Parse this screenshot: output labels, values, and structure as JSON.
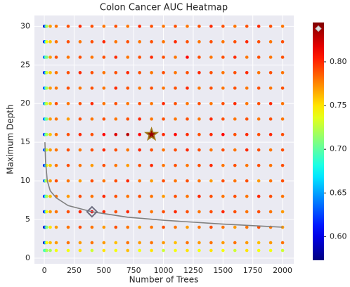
{
  "chart_data": {
    "type": "scatter",
    "title": "Colon Cancer AUC Heatmap",
    "x_label": "Number of Trees",
    "y_label": "Maximum Depth",
    "x": [
      1,
      10,
      20,
      50,
      100,
      200,
      300,
      400,
      500,
      600,
      700,
      800,
      900,
      1000,
      1100,
      1200,
      1300,
      1400,
      1500,
      1600,
      1700,
      1800,
      1900,
      2000
    ],
    "y": [
      1,
      2,
      4,
      6,
      8,
      10,
      12,
      14,
      16,
      18,
      20,
      22,
      24,
      26,
      28,
      30
    ],
    "values": [
      [
        0.7,
        0.69,
        0.72,
        0.72,
        0.74,
        0.74,
        0.75,
        0.73,
        0.75,
        0.74,
        0.76,
        0.74,
        0.75,
        0.73,
        0.74,
        0.75,
        0.74,
        0.75,
        0.74,
        0.73,
        0.75,
        0.74,
        0.74,
        0.73
      ],
      [
        0.59,
        0.66,
        0.74,
        0.76,
        0.77,
        0.78,
        0.77,
        0.78,
        0.77,
        0.76,
        0.78,
        0.77,
        0.78,
        0.77,
        0.76,
        0.78,
        0.77,
        0.78,
        0.77,
        0.78,
        0.77,
        0.76,
        0.77,
        0.78
      ],
      [
        0.59,
        0.64,
        0.71,
        0.75,
        0.77,
        0.78,
        0.79,
        0.78,
        0.77,
        0.79,
        0.78,
        0.77,
        0.78,
        0.79,
        0.78,
        0.77,
        0.78,
        0.79,
        0.78,
        0.77,
        0.78,
        0.79,
        0.78,
        0.77
      ],
      [
        0.6,
        0.66,
        0.74,
        0.77,
        0.78,
        0.79,
        0.8,
        0.81,
        0.8,
        0.79,
        0.8,
        0.79,
        0.78,
        0.79,
        0.8,
        0.79,
        0.78,
        0.79,
        0.8,
        0.79,
        0.78,
        0.79,
        0.78,
        0.77
      ],
      [
        0.61,
        0.68,
        0.72,
        0.76,
        0.78,
        0.77,
        0.79,
        0.78,
        0.8,
        0.79,
        0.78,
        0.79,
        0.78,
        0.77,
        0.79,
        0.78,
        0.8,
        0.79,
        0.78,
        0.79,
        0.78,
        0.8,
        0.79,
        0.78
      ],
      [
        0.63,
        0.7,
        0.73,
        0.77,
        0.79,
        0.78,
        0.77,
        0.79,
        0.78,
        0.79,
        0.8,
        0.78,
        0.77,
        0.79,
        0.78,
        0.79,
        0.78,
        0.77,
        0.79,
        0.78,
        0.79,
        0.77,
        0.78,
        0.79
      ],
      [
        0.6,
        0.66,
        0.74,
        0.76,
        0.78,
        0.79,
        0.78,
        0.77,
        0.79,
        0.78,
        0.77,
        0.79,
        0.8,
        0.78,
        0.79,
        0.78,
        0.79,
        0.8,
        0.78,
        0.79,
        0.78,
        0.79,
        0.78,
        0.79
      ],
      [
        0.62,
        0.67,
        0.73,
        0.77,
        0.78,
        0.79,
        0.78,
        0.79,
        0.8,
        0.79,
        0.78,
        0.8,
        0.79,
        0.78,
        0.79,
        0.8,
        0.79,
        0.78,
        0.79,
        0.78,
        0.8,
        0.79,
        0.78,
        0.79
      ],
      [
        0.61,
        0.69,
        0.72,
        0.76,
        0.78,
        0.79,
        0.8,
        0.79,
        0.81,
        0.82,
        0.83,
        0.81,
        0.838,
        0.8,
        0.81,
        0.8,
        0.79,
        0.8,
        0.81,
        0.79,
        0.8,
        0.79,
        0.8,
        0.79
      ],
      [
        0.63,
        0.68,
        0.71,
        0.77,
        0.78,
        0.77,
        0.79,
        0.78,
        0.79,
        0.78,
        0.79,
        0.8,
        0.78,
        0.79,
        0.78,
        0.79,
        0.78,
        0.8,
        0.79,
        0.78,
        0.79,
        0.78,
        0.79,
        0.78
      ],
      [
        0.64,
        0.7,
        0.73,
        0.76,
        0.79,
        0.78,
        0.79,
        0.8,
        0.78,
        0.79,
        0.78,
        0.79,
        0.78,
        0.8,
        0.79,
        0.78,
        0.79,
        0.78,
        0.79,
        0.8,
        0.78,
        0.79,
        0.8,
        0.78
      ],
      [
        0.62,
        0.67,
        0.72,
        0.77,
        0.78,
        0.79,
        0.78,
        0.79,
        0.78,
        0.8,
        0.79,
        0.78,
        0.79,
        0.78,
        0.79,
        0.8,
        0.78,
        0.79,
        0.78,
        0.79,
        0.78,
        0.79,
        0.78,
        0.79
      ],
      [
        0.6,
        0.66,
        0.73,
        0.76,
        0.78,
        0.79,
        0.8,
        0.79,
        0.78,
        0.79,
        0.8,
        0.79,
        0.78,
        0.79,
        0.78,
        0.79,
        0.8,
        0.79,
        0.78,
        0.79,
        0.8,
        0.78,
        0.79,
        0.78
      ],
      [
        0.63,
        0.69,
        0.71,
        0.77,
        0.79,
        0.78,
        0.79,
        0.78,
        0.79,
        0.8,
        0.78,
        0.79,
        0.8,
        0.79,
        0.78,
        0.81,
        0.79,
        0.78,
        0.79,
        0.8,
        0.78,
        0.79,
        0.78,
        0.79
      ],
      [
        0.6,
        0.67,
        0.74,
        0.76,
        0.78,
        0.79,
        0.78,
        0.79,
        0.8,
        0.78,
        0.79,
        0.78,
        0.79,
        0.78,
        0.8,
        0.79,
        0.78,
        0.79,
        0.78,
        0.79,
        0.8,
        0.79,
        0.78,
        0.79
      ],
      [
        0.59,
        0.65,
        0.72,
        0.77,
        0.78,
        0.79,
        0.8,
        0.79,
        0.78,
        0.79,
        0.78,
        0.8,
        0.79,
        0.78,
        0.79,
        0.78,
        0.79,
        0.8,
        0.79,
        0.78,
        0.79,
        0.8,
        0.79,
        0.78
      ]
    ],
    "colormap": "jet",
    "clim": [
      0.573,
      0.845
    ],
    "cticks": [
      {
        "value": 0.6,
        "label": "0.60"
      },
      {
        "value": 0.65,
        "label": "0.65"
      },
      {
        "value": 0.7,
        "label": "0.70"
      },
      {
        "value": 0.75,
        "label": "0.75"
      },
      {
        "value": 0.8,
        "label": "0.80"
      }
    ],
    "xlim": [
      -83,
      2094
    ],
    "ylim": [
      -0.73,
      31.4
    ],
    "xticks": [
      0,
      250,
      500,
      750,
      1000,
      1250,
      1500,
      1750,
      2000
    ],
    "yticks": [
      0,
      5,
      10,
      15,
      20,
      25,
      30
    ],
    "grid": true,
    "curve": {
      "color": "#808080",
      "x": [
        5,
        10,
        25,
        50,
        100,
        200,
        400,
        700,
        1000,
        1500,
        2000
      ],
      "y": [
        15,
        12.5,
        10,
        8.7,
        7.8,
        6.8,
        6,
        5.3,
        4.9,
        4.4,
        4.0
      ]
    },
    "star": {
      "x": 900,
      "y": 16,
      "value": 0.838
    },
    "diamond": {
      "x": 400,
      "y": 6
    }
  }
}
